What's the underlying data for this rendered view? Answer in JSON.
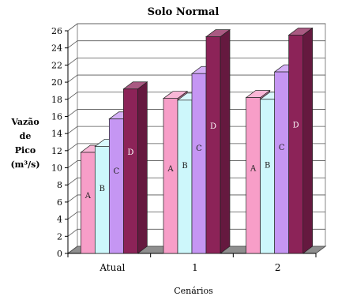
{
  "chart_data": {
    "type": "bar",
    "title": "Solo Normal",
    "ylabel_lines": [
      "Vazão",
      "de",
      "Pico",
      "(m³/s)"
    ],
    "xlabel": "Cenários",
    "categories": [
      "Atual",
      "1",
      "2"
    ],
    "series": [
      {
        "name": "A",
        "color": "#f79ec8",
        "values": [
          11.8,
          18.1,
          18.2
        ]
      },
      {
        "name": "B",
        "color": "#cdf7fb",
        "values": [
          12.5,
          17.9,
          18.0
        ]
      },
      {
        "name": "C",
        "color": "#c596f3",
        "values": [
          15.7,
          21.0,
          21.2
        ]
      },
      {
        "name": "D",
        "color": "#8c2358",
        "values": [
          19.2,
          25.3,
          25.5
        ]
      }
    ],
    "yticks": [
      0,
      2,
      4,
      6,
      8,
      10,
      12,
      14,
      16,
      18,
      20,
      22,
      24,
      26
    ],
    "ylim": [
      0,
      26
    ],
    "grid": true,
    "legend": "none"
  }
}
